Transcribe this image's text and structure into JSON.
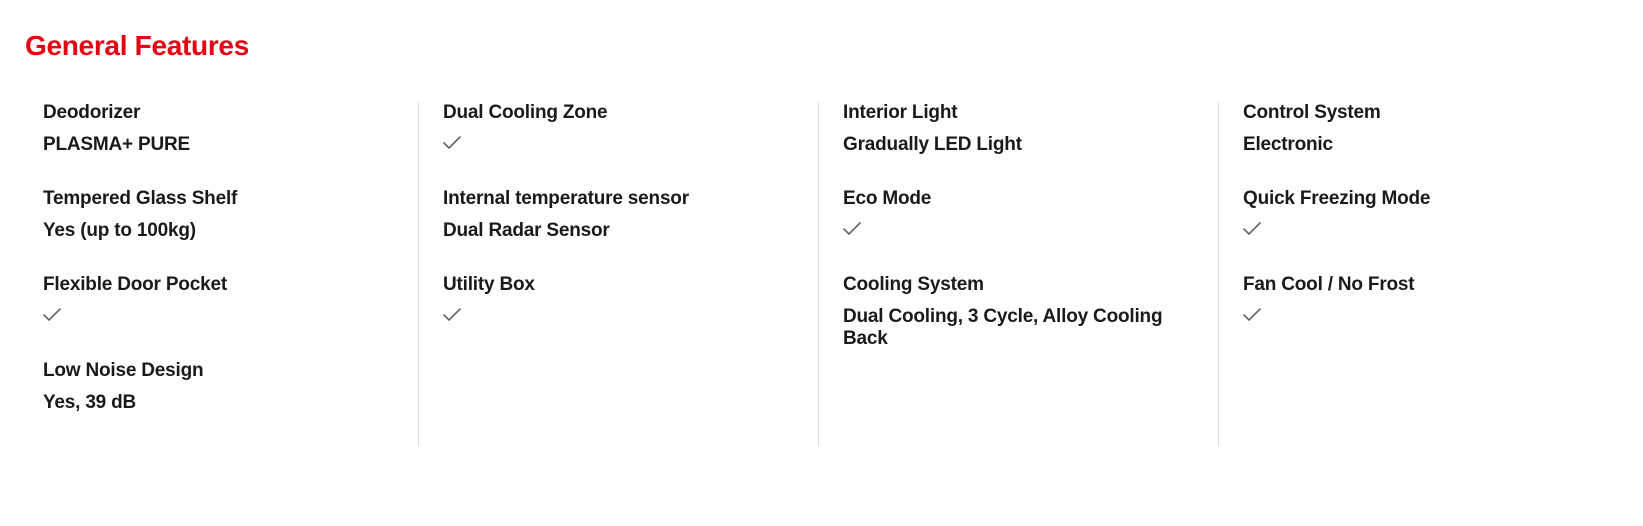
{
  "section_title": "General Features",
  "title_color": "#e60012",
  "check_color": "#666666",
  "columns": [
    [
      {
        "label": "Deodorizer",
        "value": "PLASMA+ PURE",
        "is_check": false
      },
      {
        "label": "Tempered Glass Shelf",
        "value": "Yes (up to 100kg)",
        "is_check": false
      },
      {
        "label": "Flexible Door Pocket",
        "value": "",
        "is_check": true
      },
      {
        "label": "Low Noise Design",
        "value": "Yes, 39 dB",
        "is_check": false
      }
    ],
    [
      {
        "label": "Dual Cooling Zone",
        "value": "",
        "is_check": true
      },
      {
        "label": "Internal temperature sensor",
        "value": "Dual Radar Sensor",
        "is_check": false
      },
      {
        "label": "Utility Box",
        "value": "",
        "is_check": true
      }
    ],
    [
      {
        "label": "Interior Light",
        "value": "Gradually LED Light",
        "is_check": false
      },
      {
        "label": "Eco Mode",
        "value": "",
        "is_check": true
      },
      {
        "label": "Cooling System",
        "value": "Dual Cooling, 3 Cycle, Alloy Cooling Back",
        "is_check": false
      }
    ],
    [
      {
        "label": "Control System",
        "value": "Electronic",
        "is_check": false
      },
      {
        "label": "Quick Freezing Mode",
        "value": "",
        "is_check": true
      },
      {
        "label": "Fan Cool / No Frost",
        "value": "",
        "is_check": true
      }
    ]
  ]
}
